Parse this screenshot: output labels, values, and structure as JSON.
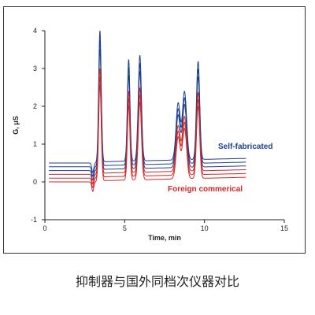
{
  "caption": "抑制器与国外同档次仪器对比",
  "chart_data": {
    "type": "line",
    "xlabel": "Time, min",
    "ylabel": "G, μS",
    "xlim": [
      0,
      15
    ],
    "ylim": [
      -1,
      4
    ],
    "x_ticks": [
      0,
      5,
      10,
      15
    ],
    "y_ticks": [
      -1,
      0,
      1,
      2,
      3,
      4
    ],
    "grid": false,
    "series_groups": [
      {
        "name": "Self-fabricated",
        "color": "#1f3f8f",
        "baselines": [
          0.5,
          0.4,
          0.3
        ],
        "peak_scale": 1.0
      },
      {
        "name": "Foreign commerical",
        "color": "#d62828",
        "baselines": [
          0.2,
          0.1,
          0.0
        ],
        "peak_scale": 0.8
      }
    ],
    "peaks": [
      {
        "t": 3.45,
        "height": 3.5,
        "width": 0.08
      },
      {
        "t": 5.25,
        "height": 2.7,
        "width": 0.08
      },
      {
        "t": 5.95,
        "height": 2.8,
        "width": 0.1
      },
      {
        "t": 8.35,
        "height": 1.5,
        "width": 0.13
      },
      {
        "t": 8.75,
        "height": 1.8,
        "width": 0.13
      },
      {
        "t": 9.6,
        "height": 2.6,
        "width": 0.1
      }
    ],
    "dip": {
      "t": 3.0,
      "depth": 0.25,
      "width": 0.06
    },
    "time_range": [
      2.8,
      12.6
    ]
  }
}
